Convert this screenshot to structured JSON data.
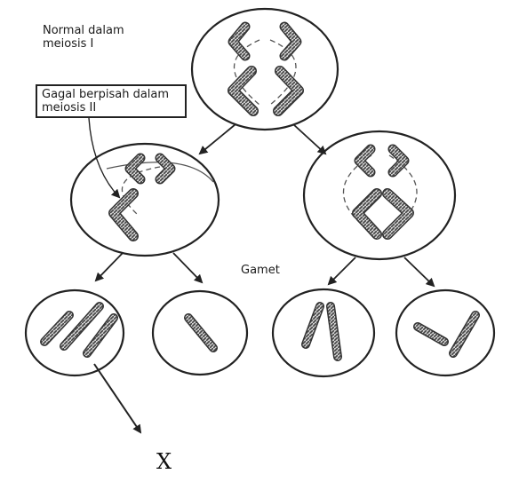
{
  "labels": {
    "normal_meiosis_1": "Normal dalam meiosis I",
    "failed_meiosis_2": "Gagal berpisah dalam meiosis II",
    "gamete": "Gamet",
    "result": "X"
  },
  "colors": {
    "outline": "#222222",
    "chromosome": "#555555",
    "chromosome_pattern": "#9a9a9a",
    "spindle": "#555555"
  }
}
